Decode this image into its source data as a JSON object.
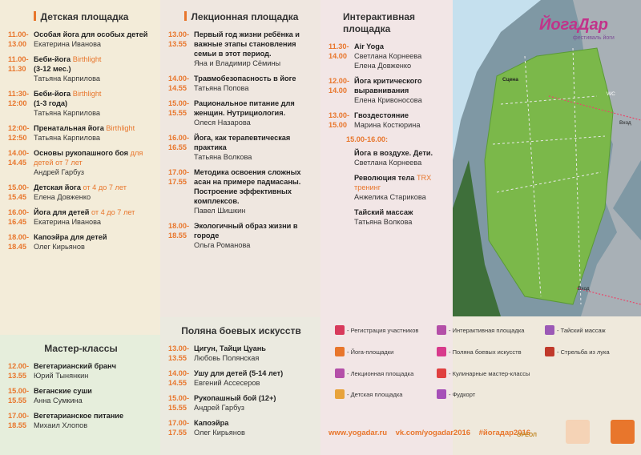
{
  "col1": {
    "title": "Детская площадка",
    "events": [
      {
        "time": "11.00-\n13.00",
        "text": "Особая йога для особых детей",
        "who": "Екатерина Иванова"
      },
      {
        "time": "11.00-\n11.30",
        "text": "Беби-йога",
        "sub": "Birthlight",
        "text2": "(3-12 мес.)",
        "who": "Татьяна Карпилова"
      },
      {
        "time": "11:30-\n12:00",
        "text": "Беби-йога",
        "sub": "Birthlight",
        "text2": "(1-3 года)",
        "who": "Татьяна Карпилова"
      },
      {
        "time": "12:00-\n12:50",
        "text": "Пренатальная йога",
        "sub": "Birthlight",
        "who": "Татьяна Карпилова"
      },
      {
        "time": "14.00-\n14.45",
        "text": "Основы рукопашного боя",
        "sub": "для детей от 7 лет",
        "who": "Андрей Гарбуз"
      },
      {
        "time": "15.00-\n15.45",
        "text": "Детская йога",
        "sub": "от 4 до 7 лет",
        "who": "Елена Довженко"
      },
      {
        "time": "16.00-\n16.45",
        "text": "Йога для детей",
        "sub": "от 4 до 7 лет",
        "who": "Екатерина Иванова"
      },
      {
        "time": "18.00-\n18.45",
        "text": "Капоэйра для детей",
        "who": "Олег Кирьянов"
      }
    ],
    "title2": "Мастер-классы",
    "events2": [
      {
        "time": "12.00-\n13.55",
        "text": "Вегетарианский бранч",
        "who": "Юрий Тынянкин"
      },
      {
        "time": "15.00-\n15.55",
        "text": "Веганские суши",
        "who": "Анна Сумкина"
      },
      {
        "time": "17.00-\n18.55",
        "text": "Вегетарианское питание",
        "who": "Михаил Хлопов"
      }
    ]
  },
  "col2": {
    "title": "Лекционная площадка",
    "events": [
      {
        "time": "13.00-\n13.55",
        "text": "Первый год жизни ребёнка и важные этапы становления семьи в этот период.",
        "who": "Яна и Владимир Сёмины"
      },
      {
        "time": "14.00-\n14.55",
        "text": "Травмобезопасность в йоге",
        "who": "Татьяна Попова"
      },
      {
        "time": "15.00-\n15.55",
        "text": "Рациональное питание для женщин. Нутрициология.",
        "who": "Олеся Назарова"
      },
      {
        "time": "16.00-\n16.55",
        "text": "Йога, как терапевтическая практика",
        "who": "Татьяна Волкова"
      },
      {
        "time": "17.00-\n17.55",
        "text": "Методика освоения сложных асан на примере падмасаны. Построение эффективных комплексов.",
        "who": "Павел Шишкин"
      },
      {
        "time": "18.00-\n18.55",
        "text": "Экологичный образ жизни в городе",
        "who": "Ольга Романова"
      }
    ],
    "title2": "Поляна боевых искусств",
    "events2": [
      {
        "time": "13.00-\n13.55",
        "text": "Цигун, Тайци Цуань",
        "who": "Любовь Полянская"
      },
      {
        "time": "14.00-\n14.55",
        "text": "Ушу для детей (5-14 лет)",
        "who": "Евгений Ассесеров"
      },
      {
        "time": "15.00-\n15.55",
        "text": "Рукопашный бой (12+)",
        "who": "Андрей Гарбуз"
      },
      {
        "time": "17.00-\n17.55",
        "text": "Капоэйра",
        "who": "Олег Кирьянов"
      }
    ]
  },
  "col3": {
    "title": "Интерактивная площадка",
    "events": [
      {
        "time": "11.30-\n14.00",
        "text": "Air Yoga",
        "who": "Светлана Корнеева\nЕлена Довженко"
      },
      {
        "time": "12.00-\n14.00",
        "text": "Йога критического выравнивания",
        "who": "Елена Кривоносова"
      },
      {
        "time": "13.00-\n15.00",
        "text": "Гвоздестояние",
        "who": "Марина Костюрина"
      }
    ],
    "time2": "15.00-16.00:",
    "events2": [
      {
        "text": "Йога в воздухе. Дети.",
        "who": "Светлана Корнеева"
      },
      {
        "text": "Революция тела",
        "sub": "TRX тренинг",
        "who": "Анжелика Старикова"
      },
      {
        "text": "Тайский массаж",
        "who": "Татьяна Волкова"
      }
    ]
  },
  "map": {
    "logo": "ЙогаДар",
    "logo_sub": "фестиваль йоги",
    "scene": "Сцена",
    "wc": "WC",
    "entry1": "Вход",
    "entry2": "Вход"
  },
  "legend": [
    {
      "label": "- Регистрация участников",
      "color": "#d83a5c"
    },
    {
      "label": "- Йога-площадки",
      "color": "#e8762c"
    },
    {
      "label": "- Лекционная площадка",
      "color": "#b44fa8"
    },
    {
      "label": "- Детская площадка",
      "color": "#e8a33c"
    },
    {
      "label": "- Интерактивная площадка",
      "color": "#b44fa8"
    },
    {
      "label": "- Поляна боевых искусств",
      "color": "#d83a8c"
    },
    {
      "label": "- Кулинарные мастер-классы",
      "color": "#e04040"
    },
    {
      "label": "- Фудкорт",
      "color": "#a64fb8"
    },
    {
      "label": "- Тайский массаж",
      "color": "#9b59b6"
    },
    {
      "label": "- Стрельба из лука",
      "color": "#c0392b"
    }
  ],
  "footer": {
    "site": "www.yogadar.ru",
    "vk": "vk.com/yogadar2016",
    "tag": "#йогадар2016",
    "sponsor": "ОРЕОЛ"
  },
  "colors": {
    "accent": "#e8762c",
    "grass": "#7bb84a",
    "water": "#7f98a4"
  }
}
